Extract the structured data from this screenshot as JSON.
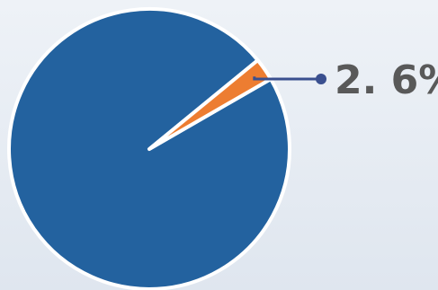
{
  "chart_data": {
    "type": "pie",
    "title": "",
    "start_angle_deg": 60,
    "direction": "clockwise",
    "slices": [
      {
        "value": 97.4,
        "label": "",
        "color": "#23629f"
      },
      {
        "value": 2.6,
        "label": "2. 6%",
        "color": "#ed7d31"
      }
    ],
    "leader_line_color": "#3a4f8f"
  }
}
